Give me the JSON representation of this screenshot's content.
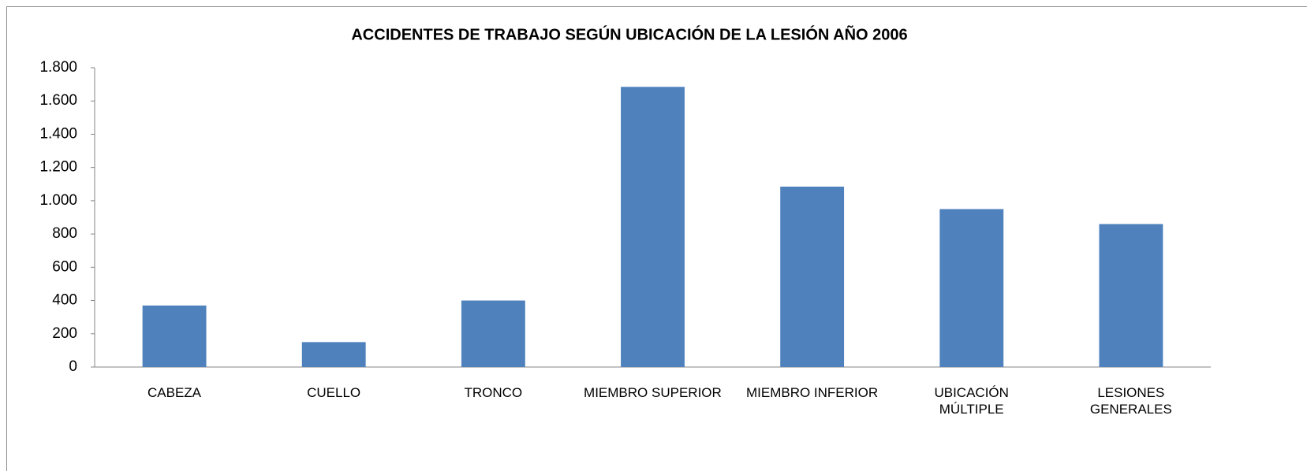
{
  "chart_data": {
    "type": "bar",
    "title": "ACCIDENTES DE TRABAJO SEGÚN UBICACIÓN DE LA LESIÓN AÑO 2006",
    "categories": [
      "CABEZA",
      "CUELLO",
      "TRONCO",
      "MIEMBRO SUPERIOR",
      "MIEMBRO INFERIOR",
      "UBICACIÓN\nMÚLTIPLE",
      "LESIONES\nGENERALES"
    ],
    "values": [
      370,
      150,
      400,
      1685,
      1085,
      950,
      860
    ],
    "color": "#4f81bd",
    "ylim": [
      0,
      1800
    ],
    "yticks": [
      0,
      200,
      400,
      600,
      800,
      {
        "value": 1000,
        "label": "1.000"
      },
      {
        "value": 1200,
        "label": "1.200"
      },
      {
        "value": 1400,
        "label": "1.400"
      },
      {
        "value": 1600,
        "label": "1.600"
      },
      {
        "value": 1800,
        "label": "1.800"
      }
    ],
    "grid": false
  }
}
